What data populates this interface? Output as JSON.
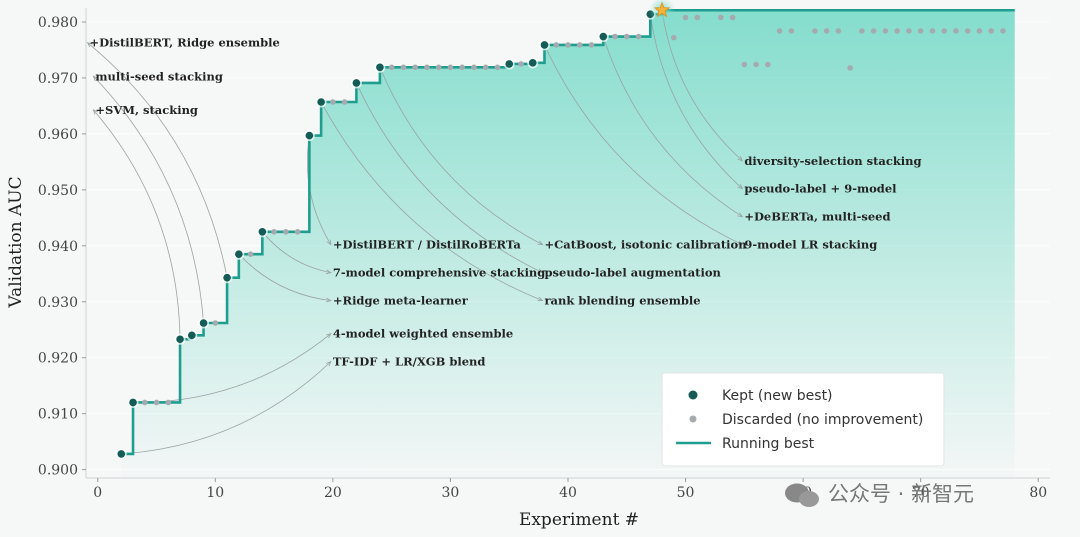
{
  "chart_data": {
    "type": "line",
    "xlabel": "Experiment #",
    "ylabel": "Validation AUC",
    "xlim": [
      -1,
      81
    ],
    "ylim": [
      0.8985,
      0.9825
    ],
    "x_ticks": [
      0,
      10,
      20,
      30,
      40,
      50,
      60,
      70,
      80
    ],
    "y_ticks": [
      0.9,
      0.91,
      0.92,
      0.93,
      0.94,
      0.95,
      0.96,
      0.97,
      0.98
    ],
    "grid": "horizontal",
    "legend_position": "lower-right",
    "colors": {
      "line": "#1f9e8f",
      "kept": "#145c55",
      "discarded": "#a4aaad",
      "star": "#f3b23a",
      "fill": "#7fdccb"
    },
    "series": [
      {
        "name": "Kept (new best)",
        "points": [
          [
            2,
            0.9028
          ],
          [
            3,
            0.912
          ],
          [
            7,
            0.9233
          ],
          [
            8,
            0.924
          ],
          [
            9,
            0.9262
          ],
          [
            11,
            0.9343
          ],
          [
            12,
            0.9385
          ],
          [
            14,
            0.9425
          ],
          [
            18,
            0.9597
          ],
          [
            19,
            0.9657
          ],
          [
            22,
            0.9691
          ],
          [
            24,
            0.9719
          ],
          [
            35,
            0.9725
          ],
          [
            37,
            0.9727
          ],
          [
            38,
            0.9759
          ],
          [
            43,
            0.9774
          ],
          [
            47,
            0.9814
          ],
          [
            48,
            0.9821
          ]
        ]
      },
      {
        "name": "Discarded (no improvement)",
        "points": [
          [
            4,
            0.912
          ],
          [
            5,
            0.912
          ],
          [
            6,
            0.912
          ],
          [
            10,
            0.9262
          ],
          [
            13,
            0.9385
          ],
          [
            15,
            0.9425
          ],
          [
            16,
            0.9425
          ],
          [
            17,
            0.9425
          ],
          [
            20,
            0.9657
          ],
          [
            21,
            0.9657
          ],
          [
            25,
            0.9719
          ],
          [
            26,
            0.9719
          ],
          [
            27,
            0.9719
          ],
          [
            28,
            0.9719
          ],
          [
            29,
            0.9719
          ],
          [
            30,
            0.9719
          ],
          [
            31,
            0.9719
          ],
          [
            32,
            0.9719
          ],
          [
            33,
            0.9719
          ],
          [
            34,
            0.9719
          ],
          [
            36,
            0.9725
          ],
          [
            39,
            0.9759
          ],
          [
            40,
            0.9759
          ],
          [
            41,
            0.9759
          ],
          [
            42,
            0.9759
          ],
          [
            44,
            0.9774
          ],
          [
            45,
            0.9774
          ],
          [
            46,
            0.9774
          ],
          [
            49,
            0.9772
          ],
          [
            50,
            0.9808
          ],
          [
            51,
            0.9808
          ],
          [
            53,
            0.9808
          ],
          [
            54,
            0.9808
          ],
          [
            55,
            0.9724
          ],
          [
            56,
            0.9724
          ],
          [
            57,
            0.9724
          ],
          [
            58,
            0.9784
          ],
          [
            59,
            0.9784
          ],
          [
            61,
            0.9784
          ],
          [
            62,
            0.9784
          ],
          [
            63,
            0.9784
          ],
          [
            64,
            0.9718
          ],
          [
            65,
            0.9784
          ],
          [
            66,
            0.9784
          ],
          [
            67,
            0.9784
          ],
          [
            68,
            0.9784
          ],
          [
            69,
            0.9784
          ],
          [
            70,
            0.9784
          ],
          [
            71,
            0.9784
          ],
          [
            72,
            0.9784
          ],
          [
            73,
            0.9784
          ],
          [
            74,
            0.9784
          ],
          [
            75,
            0.9784
          ],
          [
            76,
            0.9784
          ],
          [
            77,
            0.9784
          ]
        ]
      },
      {
        "name": "Running best",
        "step": true,
        "x_end": 78
      }
    ],
    "annotations": [
      {
        "text": "TF-IDF + LR/XGB blend",
        "x": 2,
        "y": 0.9028,
        "text_x": 20,
        "text_y": 0.9193
      },
      {
        "text": "4-model weighted ensemble",
        "x": 3,
        "y": 0.912,
        "text_x": 20,
        "text_y": 0.9243
      },
      {
        "text": "+Ridge meta-learner",
        "x": 12,
        "y": 0.9385,
        "text_x": 20,
        "text_y": 0.9302
      },
      {
        "text": "7-model comprehensive stacking",
        "x": 14,
        "y": 0.9425,
        "text_x": 20,
        "text_y": 0.9352
      },
      {
        "text": "+DistilBERT / DistilRoBERTa",
        "x": 18,
        "y": 0.9597,
        "text_x": 20,
        "text_y": 0.9402
      },
      {
        "text": "+SVM, stacking",
        "x": 7,
        "y": 0.9233,
        "text_x": -0.2,
        "text_y": 0.9643
      },
      {
        "text": "multi-seed stacking",
        "x": 9,
        "y": 0.9262,
        "text_x": -0.2,
        "text_y": 0.9703
      },
      {
        "text": "+DistilBERT, Ridge ensemble",
        "x": 11,
        "y": 0.9343,
        "text_x": -0.7,
        "text_y": 0.9763
      },
      {
        "text": "rank blending ensemble",
        "x": 19,
        "y": 0.9657,
        "text_x": 38,
        "text_y": 0.9302
      },
      {
        "text": "pseudo-label augmentation",
        "x": 22,
        "y": 0.9691,
        "text_x": 38,
        "text_y": 0.9352
      },
      {
        "text": "+CatBoost, isotonic calibration",
        "x": 24,
        "y": 0.9719,
        "text_x": 38,
        "text_y": 0.9402
      },
      {
        "text": "9-model LR stacking",
        "x": 38,
        "y": 0.9759,
        "text_x": 55,
        "text_y": 0.9402
      },
      {
        "text": "+DeBERTa, multi-seed",
        "x": 43,
        "y": 0.9774,
        "text_x": 55,
        "text_y": 0.9452
      },
      {
        "text": "pseudo-label + 9-model",
        "x": 47,
        "y": 0.9814,
        "text_x": 55,
        "text_y": 0.9502
      },
      {
        "text": "diversity-selection stacking",
        "x": 48,
        "y": 0.9821,
        "text_x": 55,
        "text_y": 0.9552
      }
    ]
  },
  "legend": {
    "kept": "Kept (new best)",
    "discarded": "Discarded (no improvement)",
    "running": "Running best"
  },
  "watermark": "公众号 · 新智元"
}
